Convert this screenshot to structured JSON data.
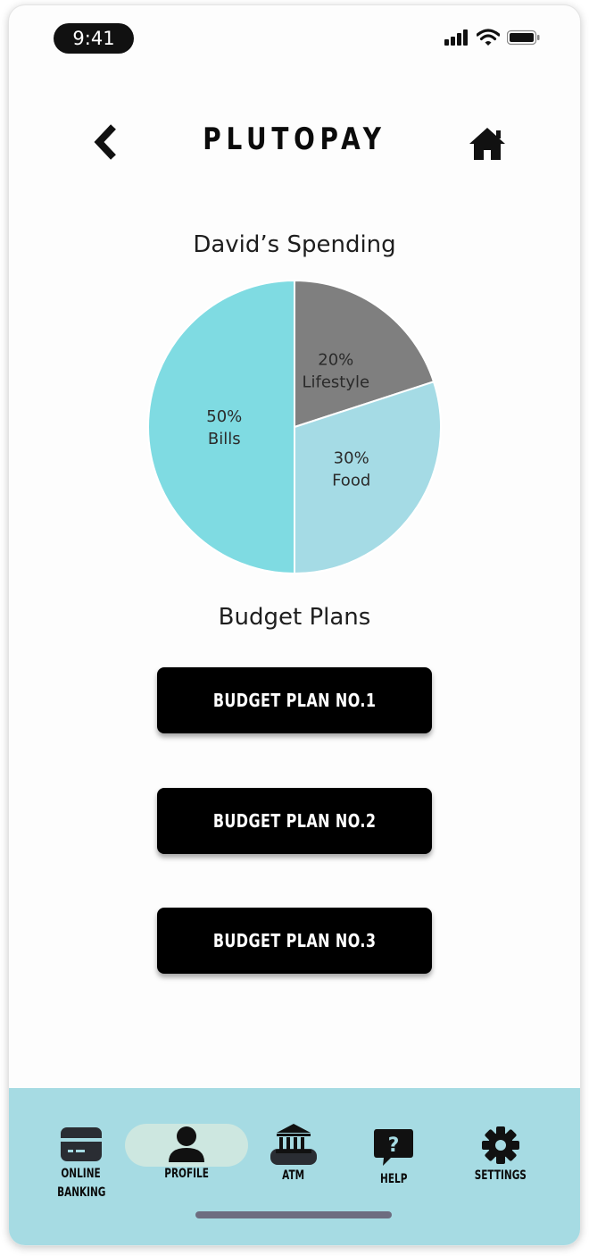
{
  "status": {
    "time": "9:41"
  },
  "header": {
    "title": "PLUTOPAY",
    "back_icon": "chevron-left-icon",
    "home_icon": "home-icon"
  },
  "chart_section": {
    "title": "David’s Spending"
  },
  "chart_data": {
    "type": "pie",
    "title": "David’s Spending",
    "slices": [
      {
        "name": "Lifestyle",
        "value": 20,
        "label": "20%",
        "color": "#7f7f7f"
      },
      {
        "name": "Food",
        "value": 30,
        "label": "30%",
        "color": "#a5dbe5"
      },
      {
        "name": "Bills",
        "value": 50,
        "label": "50%",
        "color": "#7fdbe2"
      }
    ]
  },
  "budget": {
    "title": "Budget Plans",
    "plans": [
      {
        "label": "BUDGET PLAN  NO.1"
      },
      {
        "label": "BUDGET PLAN  NO.2"
      },
      {
        "label": "BUDGET PLAN  NO.3"
      }
    ]
  },
  "nav": {
    "items": [
      {
        "line1": "ONLINE",
        "line2": "BANKING",
        "icon": "card-icon"
      },
      {
        "line1": "PROFILE",
        "line2": "",
        "icon": "user-icon",
        "active": true
      },
      {
        "line1": "ATM",
        "line2": "",
        "icon": "bank-icon"
      },
      {
        "line1": "HELP",
        "line2": "",
        "icon": "help-icon"
      },
      {
        "line1": "SETTINGS",
        "line2": "",
        "icon": "gear-icon"
      }
    ]
  },
  "colors": {
    "nav_bg": "#a6dbe3",
    "active_pill": "#cde7e0",
    "button_bg": "#000000"
  }
}
